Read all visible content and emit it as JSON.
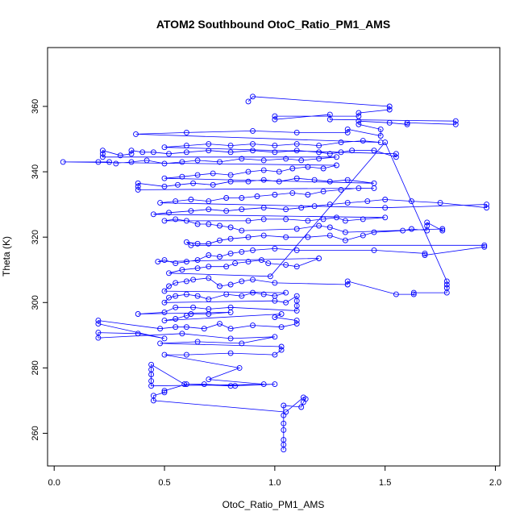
{
  "chart_data": {
    "type": "scatter",
    "title": "ATOM2 Southbound OtoC_Ratio_PM1_AMS",
    "xlabel": "OtoC_Ratio_PM1_AMS",
    "ylabel": "Theta (K)",
    "xlim": [
      -0.03,
      2.02
    ],
    "ylim": [
      250,
      378
    ],
    "xticks": [
      0.0,
      0.5,
      1.0,
      1.5,
      2.0
    ],
    "xtick_labels": [
      "0.0",
      "0.5",
      "1.0",
      "1.5",
      "2.0"
    ],
    "yticks": [
      260,
      280,
      300,
      320,
      340,
      360
    ],
    "ytick_labels": [
      "260",
      "280",
      "300",
      "320",
      "340",
      "360"
    ],
    "grid": false,
    "legend": "none",
    "colors": {
      "series": "#0000ff",
      "axis": "#000000",
      "background": "#ffffff"
    },
    "series": [
      {
        "mode": "lines+markers",
        "marker": "open-circle",
        "points": [
          [
            1.04,
            255
          ],
          [
            1.04,
            256.5
          ],
          [
            1.04,
            258
          ],
          [
            1.04,
            261
          ],
          [
            1.04,
            263
          ],
          [
            1.04,
            265.5
          ],
          [
            1.04,
            268.5
          ],
          [
            1.12,
            268
          ],
          [
            1.13,
            269.5
          ],
          [
            1.14,
            270.5
          ],
          [
            1.13,
            271
          ],
          [
            1.05,
            266.5
          ],
          [
            0.45,
            270
          ],
          [
            0.45,
            271.5
          ],
          [
            0.5,
            272.5
          ],
          [
            0.5,
            273
          ],
          [
            0.6,
            275
          ],
          [
            0.8,
            274.5
          ],
          [
            1.0,
            275
          ],
          [
            0.44,
            274.5
          ],
          [
            0.44,
            276
          ],
          [
            0.44,
            278
          ],
          [
            0.44,
            279.5
          ],
          [
            0.44,
            281
          ],
          [
            0.59,
            275
          ],
          [
            0.68,
            275
          ],
          [
            0.82,
            274.5
          ],
          [
            0.95,
            275
          ],
          [
            0.7,
            276.5
          ],
          [
            0.84,
            280
          ],
          [
            0.5,
            284
          ],
          [
            0.6,
            284
          ],
          [
            0.8,
            284.5
          ],
          [
            1.0,
            284
          ],
          [
            1.03,
            285.5
          ],
          [
            1.03,
            286.5
          ],
          [
            0.48,
            287.5
          ],
          [
            0.65,
            288
          ],
          [
            0.85,
            287.5
          ],
          [
            1.0,
            289.5
          ],
          [
            0.8,
            289
          ],
          [
            0.58,
            290.5
          ],
          [
            0.2,
            289.2
          ],
          [
            0.2,
            290.8
          ],
          [
            0.38,
            290.5
          ],
          [
            0.5,
            289
          ],
          [
            0.2,
            293.5
          ],
          [
            0.2,
            294.5
          ],
          [
            0.48,
            292
          ],
          [
            0.55,
            292.5
          ],
          [
            0.6,
            292.5
          ],
          [
            0.68,
            292
          ],
          [
            0.75,
            293.5
          ],
          [
            0.8,
            292
          ],
          [
            0.9,
            293
          ],
          [
            1.03,
            292.5
          ],
          [
            1.1,
            293.5
          ],
          [
            1.1,
            294.5
          ],
          [
            1.0,
            295.5
          ],
          [
            1.03,
            296.5
          ],
          [
            0.5,
            294.5
          ],
          [
            0.55,
            295
          ],
          [
            0.6,
            296
          ],
          [
            0.62,
            296.5
          ],
          [
            0.7,
            296.5
          ],
          [
            0.8,
            297
          ],
          [
            0.38,
            296.5
          ],
          [
            0.5,
            297
          ],
          [
            0.55,
            298.5
          ],
          [
            0.63,
            298.5
          ],
          [
            0.7,
            298
          ],
          [
            0.8,
            298.5
          ],
          [
            1.1,
            297.5
          ],
          [
            1.1,
            299
          ],
          [
            1.1,
            300.5
          ],
          [
            1.1,
            302
          ],
          [
            1.05,
            300
          ],
          [
            1.0,
            300.5
          ],
          [
            0.5,
            300
          ],
          [
            0.52,
            301.5
          ],
          [
            0.55,
            302
          ],
          [
            0.6,
            302.5
          ],
          [
            0.65,
            302
          ],
          [
            0.7,
            301
          ],
          [
            0.78,
            302.5
          ],
          [
            0.85,
            302
          ],
          [
            0.9,
            303
          ],
          [
            0.95,
            302.5
          ],
          [
            1.0,
            302
          ],
          [
            1.05,
            303
          ],
          [
            0.5,
            303.5
          ],
          [
            0.52,
            305
          ],
          [
            0.55,
            306
          ],
          [
            0.6,
            306.5
          ],
          [
            0.63,
            307
          ],
          [
            0.7,
            307.5
          ],
          [
            0.75,
            305
          ],
          [
            0.8,
            305.5
          ],
          [
            0.85,
            306.5
          ],
          [
            0.9,
            307
          ],
          [
            1.0,
            306
          ],
          [
            1.33,
            305.5
          ],
          [
            1.33,
            306.5
          ],
          [
            1.55,
            302.5
          ],
          [
            1.63,
            302.5
          ],
          [
            1.63,
            303
          ],
          [
            1.78,
            303
          ],
          [
            1.78,
            304.5
          ],
          [
            1.78,
            305.5
          ],
          [
            1.78,
            306.5
          ],
          [
            1.5,
            349
          ],
          [
            0.98,
            308
          ],
          [
            0.52,
            309
          ],
          [
            0.58,
            310
          ],
          [
            0.65,
            310.5
          ],
          [
            0.7,
            311
          ],
          [
            0.78,
            311
          ],
          [
            0.82,
            312
          ],
          [
            0.88,
            312.5
          ],
          [
            0.94,
            313
          ],
          [
            0.97,
            312
          ],
          [
            1.05,
            311.5
          ],
          [
            1.1,
            311
          ],
          [
            1.2,
            313.5
          ],
          [
            0.47,
            312.5
          ],
          [
            0.5,
            313
          ],
          [
            0.55,
            312
          ],
          [
            0.6,
            312.5
          ],
          [
            0.65,
            313
          ],
          [
            0.7,
            314.5
          ],
          [
            0.75,
            314
          ],
          [
            0.8,
            315
          ],
          [
            0.85,
            315.5
          ],
          [
            0.9,
            316
          ],
          [
            1.0,
            316.5
          ],
          [
            1.1,
            316
          ],
          [
            1.45,
            316
          ],
          [
            1.68,
            315
          ],
          [
            1.68,
            314.5
          ],
          [
            1.95,
            317
          ],
          [
            1.95,
            317.5
          ],
          [
            0.62,
            317.5
          ],
          [
            0.6,
            318.5
          ],
          [
            0.65,
            318
          ],
          [
            0.7,
            318
          ],
          [
            0.75,
            319
          ],
          [
            0.8,
            319.5
          ],
          [
            0.88,
            320
          ],
          [
            0.95,
            320.5
          ],
          [
            1.05,
            320
          ],
          [
            1.15,
            320
          ],
          [
            1.25,
            320.5
          ],
          [
            1.32,
            319
          ],
          [
            1.4,
            320.5
          ],
          [
            1.45,
            321.5
          ],
          [
            1.58,
            322
          ],
          [
            1.62,
            322.5
          ],
          [
            1.69,
            322
          ],
          [
            1.69,
            323.5
          ],
          [
            1.69,
            324.5
          ],
          [
            1.76,
            322
          ],
          [
            1.76,
            322.5
          ],
          [
            1.32,
            321.5
          ],
          [
            1.25,
            323
          ],
          [
            1.2,
            323.5
          ],
          [
            1.1,
            322.5
          ],
          [
            0.85,
            322
          ],
          [
            0.8,
            323
          ],
          [
            0.75,
            323.5
          ],
          [
            0.7,
            324
          ],
          [
            0.65,
            324
          ],
          [
            0.6,
            325
          ],
          [
            0.55,
            325.5
          ],
          [
            0.5,
            325
          ],
          [
            0.88,
            325
          ],
          [
            0.95,
            325.5
          ],
          [
            1.05,
            325.5
          ],
          [
            1.15,
            325
          ],
          [
            1.22,
            325.5
          ],
          [
            1.28,
            326
          ],
          [
            1.32,
            325
          ],
          [
            1.4,
            325.5
          ],
          [
            1.5,
            326
          ],
          [
            0.45,
            327
          ],
          [
            0.52,
            327.5
          ],
          [
            0.62,
            328
          ],
          [
            0.7,
            328.5
          ],
          [
            0.78,
            328
          ],
          [
            0.85,
            328.5
          ],
          [
            0.95,
            329
          ],
          [
            1.05,
            328.5
          ],
          [
            1.12,
            329
          ],
          [
            1.18,
            329.5
          ],
          [
            1.25,
            330
          ],
          [
            1.33,
            330.5
          ],
          [
            1.42,
            331
          ],
          [
            1.5,
            331.5
          ],
          [
            1.62,
            331
          ],
          [
            1.75,
            330.5
          ],
          [
            1.96,
            329
          ],
          [
            1.96,
            330
          ],
          [
            1.5,
            329
          ],
          [
            0.48,
            330.5
          ],
          [
            0.55,
            331
          ],
          [
            0.62,
            331.5
          ],
          [
            0.7,
            331
          ],
          [
            0.78,
            332
          ],
          [
            0.85,
            332
          ],
          [
            0.92,
            332.5
          ],
          [
            1.0,
            333
          ],
          [
            1.08,
            333.5
          ],
          [
            1.15,
            333
          ],
          [
            1.22,
            334
          ],
          [
            1.3,
            334.5
          ],
          [
            1.38,
            335
          ],
          [
            1.45,
            335
          ],
          [
            0.38,
            334.5
          ],
          [
            0.38,
            335.5
          ],
          [
            0.38,
            336.5
          ],
          [
            0.5,
            335.5
          ],
          [
            0.56,
            336
          ],
          [
            0.63,
            336.5
          ],
          [
            0.72,
            336
          ],
          [
            0.8,
            337
          ],
          [
            0.88,
            337
          ],
          [
            0.95,
            337.5
          ],
          [
            1.02,
            337
          ],
          [
            1.1,
            338
          ],
          [
            1.18,
            337.5
          ],
          [
            1.25,
            337
          ],
          [
            1.33,
            337.5
          ],
          [
            1.45,
            336.5
          ],
          [
            0.5,
            338
          ],
          [
            0.58,
            338.5
          ],
          [
            0.65,
            339
          ],
          [
            0.72,
            339.5
          ],
          [
            0.8,
            339
          ],
          [
            0.88,
            340
          ],
          [
            0.95,
            340.5
          ],
          [
            1.02,
            340
          ],
          [
            1.08,
            341
          ],
          [
            1.15,
            341.5
          ],
          [
            1.22,
            341
          ],
          [
            1.28,
            342
          ],
          [
            0.04,
            343
          ],
          [
            0.2,
            343
          ],
          [
            0.25,
            343
          ],
          [
            0.28,
            342.5
          ],
          [
            0.35,
            343
          ],
          [
            0.42,
            343.5
          ],
          [
            0.5,
            342.5
          ],
          [
            0.58,
            343
          ],
          [
            0.65,
            343.5
          ],
          [
            0.75,
            343
          ],
          [
            0.85,
            344
          ],
          [
            0.95,
            343.5
          ],
          [
            1.05,
            344
          ],
          [
            1.12,
            343.5
          ],
          [
            1.2,
            344
          ],
          [
            1.28,
            344.5
          ],
          [
            0.22,
            344.5
          ],
          [
            0.22,
            345.5
          ],
          [
            0.22,
            346.5
          ],
          [
            0.3,
            345
          ],
          [
            0.35,
            345.5
          ],
          [
            0.35,
            346.5
          ],
          [
            0.4,
            346
          ],
          [
            0.45,
            346
          ],
          [
            0.52,
            345.5
          ],
          [
            0.6,
            346
          ],
          [
            0.7,
            346.5
          ],
          [
            0.8,
            346
          ],
          [
            0.9,
            346.5
          ],
          [
            1.0,
            346
          ],
          [
            1.1,
            346.5
          ],
          [
            1.2,
            346
          ],
          [
            1.25,
            345.5
          ],
          [
            1.3,
            346
          ],
          [
            1.35,
            346.5
          ],
          [
            1.45,
            346.5
          ],
          [
            1.55,
            344.5
          ],
          [
            1.55,
            345.5
          ],
          [
            0.5,
            347.5
          ],
          [
            0.6,
            348
          ],
          [
            0.7,
            348.5
          ],
          [
            0.8,
            348
          ],
          [
            0.9,
            348.5
          ],
          [
            1.0,
            348
          ],
          [
            1.1,
            348.5
          ],
          [
            1.2,
            348
          ],
          [
            1.3,
            349
          ],
          [
            1.4,
            349.5
          ],
          [
            1.48,
            349
          ],
          [
            0.37,
            351.5
          ],
          [
            0.6,
            352
          ],
          [
            0.9,
            352.5
          ],
          [
            1.1,
            352
          ],
          [
            1.33,
            352
          ],
          [
            1.33,
            353
          ],
          [
            1.48,
            351
          ],
          [
            1.48,
            353
          ],
          [
            1.38,
            354.5
          ],
          [
            1.38,
            355.5
          ],
          [
            1.52,
            355
          ],
          [
            1.6,
            354.5
          ],
          [
            1.6,
            355
          ],
          [
            1.82,
            354.5
          ],
          [
            1.82,
            355.5
          ],
          [
            1.25,
            356
          ],
          [
            1.25,
            357.5
          ],
          [
            1.0,
            356
          ],
          [
            1.0,
            357
          ],
          [
            1.38,
            357
          ],
          [
            1.38,
            358
          ],
          [
            1.52,
            359
          ],
          [
            1.52,
            360
          ],
          [
            0.9,
            363
          ],
          [
            0.88,
            361.5
          ]
        ]
      }
    ]
  }
}
